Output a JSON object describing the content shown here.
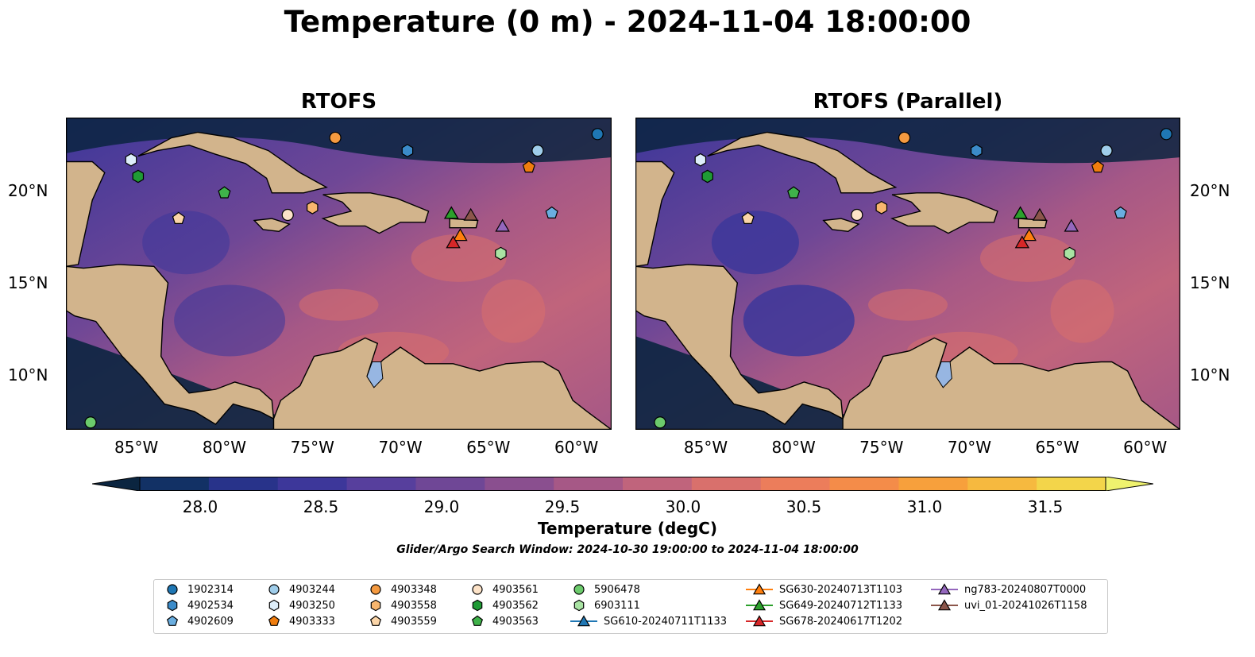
{
  "figure": {
    "title": "Temperature (0 m) - 2024-11-04 18:00:00",
    "window_text": "Glider/Argo Search Window: 2024-10-30 19:00:00 to 2024-11-04 18:00:00"
  },
  "panels": [
    {
      "title": "RTOFS"
    },
    {
      "title": "RTOFS (Parallel)"
    }
  ],
  "axes": {
    "x_ticks": [
      "85°W",
      "80°W",
      "75°W",
      "70°W",
      "65°W",
      "60°W"
    ],
    "y_ticks": [
      "20°N",
      "15°N",
      "10°N"
    ]
  },
  "colorbar": {
    "label": "Temperature (degC)",
    "tick_labels": [
      "28.0",
      "28.5",
      "29.0",
      "29.5",
      "30.0",
      "30.5",
      "31.0",
      "31.5"
    ],
    "colors": [
      "#0b2540",
      "#123165",
      "#28338a",
      "#3d379a",
      "#573f9d",
      "#6f4796",
      "#8a4f8f",
      "#a65886",
      "#c0647c",
      "#d9706c",
      "#ec7d5b",
      "#f48c49",
      "#f7a03c",
      "#f6b93f",
      "#f3d54a",
      "#eff26e"
    ]
  },
  "chart_data": [
    {
      "type": "heatmap",
      "title": "RTOFS",
      "xlim": [
        -89,
        -58
      ],
      "ylim": [
        7,
        24
      ],
      "value_range": [
        28.0,
        31.5
      ],
      "series": [
        {
          "name": "1902314",
          "lon": -58.8,
          "lat": 23.1
        },
        {
          "name": "4902534",
          "lon": -69.6,
          "lat": 22.2
        },
        {
          "name": "4902609",
          "lon": -61.4,
          "lat": 18.8
        },
        {
          "name": "4903244",
          "lon": -62.2,
          "lat": 22.2
        },
        {
          "name": "4903250",
          "lon": -85.3,
          "lat": 21.7
        },
        {
          "name": "4903333",
          "lon": -62.7,
          "lat": 21.3
        },
        {
          "name": "4903348",
          "lon": -73.7,
          "lat": 22.9
        },
        {
          "name": "4903558",
          "lon": -75.0,
          "lat": 19.1
        },
        {
          "name": "4903559",
          "lon": -82.6,
          "lat": 18.5
        },
        {
          "name": "4903561",
          "lon": -76.4,
          "lat": 18.7
        },
        {
          "name": "4903562",
          "lon": -84.9,
          "lat": 20.8
        },
        {
          "name": "4903563",
          "lon": -80.0,
          "lat": 19.9
        },
        {
          "name": "5906478",
          "lon": -87.6,
          "lat": 7.4
        },
        {
          "name": "6903111",
          "lon": -64.3,
          "lat": 16.6
        },
        {
          "name": "SG610-20240711T1133",
          "lon": -67.1,
          "lat": 18.8
        },
        {
          "name": "SG630-20240713T1103",
          "lon": -66.6,
          "lat": 17.6
        },
        {
          "name": "SG649-20240712T1133",
          "lon": -67.1,
          "lat": 18.8
        },
        {
          "name": "SG678-20240617T1202",
          "lon": -67.0,
          "lat": 17.2
        },
        {
          "name": "ng783-20240807T0000",
          "lon": -64.2,
          "lat": 18.1
        },
        {
          "name": "uvi_01-20241026T1158",
          "lon": -66.0,
          "lat": 18.7
        }
      ]
    },
    {
      "type": "heatmap",
      "title": "RTOFS (Parallel)",
      "xlim": [
        -89,
        -58
      ],
      "ylim": [
        7,
        24
      ],
      "value_range": [
        28.0,
        31.5
      ],
      "series": [
        {
          "name": "1902314",
          "lon": -58.8,
          "lat": 23.1
        },
        {
          "name": "4902534",
          "lon": -69.6,
          "lat": 22.2
        },
        {
          "name": "4902609",
          "lon": -61.4,
          "lat": 18.8
        },
        {
          "name": "4903244",
          "lon": -62.2,
          "lat": 22.2
        },
        {
          "name": "4903250",
          "lon": -85.3,
          "lat": 21.7
        },
        {
          "name": "4903333",
          "lon": -62.7,
          "lat": 21.3
        },
        {
          "name": "4903348",
          "lon": -73.7,
          "lat": 22.9
        },
        {
          "name": "4903558",
          "lon": -75.0,
          "lat": 19.1
        },
        {
          "name": "4903559",
          "lon": -82.6,
          "lat": 18.5
        },
        {
          "name": "4903561",
          "lon": -76.4,
          "lat": 18.7
        },
        {
          "name": "4903562",
          "lon": -84.9,
          "lat": 20.8
        },
        {
          "name": "4903563",
          "lon": -80.0,
          "lat": 19.9
        },
        {
          "name": "5906478",
          "lon": -87.6,
          "lat": 7.4
        },
        {
          "name": "6903111",
          "lon": -64.3,
          "lat": 16.6
        },
        {
          "name": "SG610-20240711T1133",
          "lon": -67.1,
          "lat": 18.8
        },
        {
          "name": "SG630-20240713T1103",
          "lon": -66.6,
          "lat": 17.6
        },
        {
          "name": "SG649-20240712T1133",
          "lon": -67.1,
          "lat": 18.8
        },
        {
          "name": "SG678-20240617T1202",
          "lon": -67.0,
          "lat": 17.2
        },
        {
          "name": "ng783-20240807T0000",
          "lon": -64.2,
          "lat": 18.1
        },
        {
          "name": "uvi_01-20241026T1158",
          "lon": -66.0,
          "lat": 18.7
        }
      ]
    }
  ],
  "legend": {
    "entries": [
      {
        "label": "1902314",
        "marker": "circle",
        "color": "#1f77b4"
      },
      {
        "label": "4902534",
        "marker": "hexagon",
        "color": "#3b8bc9"
      },
      {
        "label": "4902609",
        "marker": "pentagon",
        "color": "#6aaee0"
      },
      {
        "label": "4903244",
        "marker": "circle",
        "color": "#9fcdea"
      },
      {
        "label": "4903250",
        "marker": "hexagon",
        "color": "#ddeefa"
      },
      {
        "label": "4903333",
        "marker": "pentagon",
        "color": "#f07d0e"
      },
      {
        "label": "4903348",
        "marker": "circle",
        "color": "#f59a40"
      },
      {
        "label": "4903558",
        "marker": "hexagon",
        "color": "#f8b66e"
      },
      {
        "label": "4903559",
        "marker": "pentagon",
        "color": "#fbd5a8"
      },
      {
        "label": "4903561",
        "marker": "circle",
        "color": "#fde3c8"
      },
      {
        "label": "4903562",
        "marker": "hexagon",
        "color": "#1f9a35"
      },
      {
        "label": "4903563",
        "marker": "pentagon",
        "color": "#3fb24a"
      },
      {
        "label": "5906478",
        "marker": "circle",
        "color": "#6ccb6c"
      },
      {
        "label": "6903111",
        "marker": "hexagon",
        "color": "#a9e3a3"
      },
      {
        "label": "SG610-20240711T1133",
        "marker": "triangle",
        "color": "#1f77b4"
      },
      {
        "label": "SG630-20240713T1103",
        "marker": "triangle",
        "color": "#ff7f0e"
      },
      {
        "label": "SG649-20240712T1133",
        "marker": "triangle",
        "color": "#2ca02c"
      },
      {
        "label": "SG678-20240617T1202",
        "marker": "triangle",
        "color": "#d62728"
      },
      {
        "label": "ng783-20240807T0000",
        "marker": "triangle",
        "color": "#9467bd"
      },
      {
        "label": "uvi_01-20241026T1158",
        "marker": "triangle",
        "color": "#8c564b"
      }
    ]
  }
}
